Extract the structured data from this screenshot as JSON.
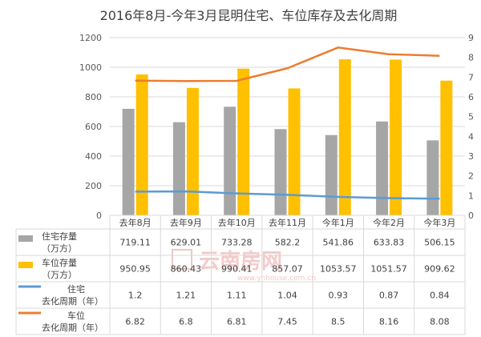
{
  "chart_data": {
    "type": "bar",
    "title": "2016年8月-今年3月昆明住宅、车位库存及去化周期",
    "categories": [
      "去年8月",
      "去年9月",
      "去年10月",
      "去年11月",
      "今年1月",
      "今年2月",
      "今年3月"
    ],
    "left_axis": {
      "min": 0,
      "max": 1200,
      "ticks": [
        "0",
        "200",
        "400",
        "600",
        "800",
        "1000",
        "1200"
      ]
    },
    "right_axis": {
      "min": 0,
      "max": 9,
      "ticks": [
        "0",
        "1",
        "2",
        "3",
        "4",
        "5",
        "6",
        "7",
        "8",
        "9"
      ]
    },
    "series": [
      {
        "name_lines": [
          "住宅存量",
          "（万方）"
        ],
        "type": "bar",
        "axis": "left",
        "color": "#a6a6a6",
        "values": [
          719.11,
          629.01,
          733.28,
          582.2,
          541.86,
          633.83,
          506.15
        ],
        "labels": [
          "719.11",
          "629.01",
          "733.28",
          "582.2",
          "541.86",
          "633.83",
          "506.15"
        ]
      },
      {
        "name_lines": [
          "车位存量",
          "（万方）"
        ],
        "type": "bar",
        "axis": "left",
        "color": "#ffc000",
        "values": [
          950.95,
          860.43,
          990.41,
          857.07,
          1053.57,
          1051.57,
          909.62
        ],
        "labels": [
          "950.95",
          "860.43",
          "990.41",
          "857.07",
          "1053.57",
          "1051.57",
          "909.62"
        ]
      },
      {
        "name_lines": [
          "住宅",
          "去化周期（年）"
        ],
        "type": "line",
        "axis": "right",
        "color": "#5b9bd5",
        "values": [
          1.2,
          1.21,
          1.11,
          1.04,
          0.93,
          0.87,
          0.84
        ],
        "labels": [
          "1.2",
          "1.21",
          "1.11",
          "1.04",
          "0.93",
          "0.87",
          "0.84"
        ]
      },
      {
        "name_lines": [
          "车位",
          "去化周期（年）"
        ],
        "type": "line",
        "axis": "right",
        "color": "#ed7d31",
        "values": [
          6.82,
          6.8,
          6.81,
          7.45,
          8.5,
          8.16,
          8.08
        ],
        "labels": [
          "6.82",
          "6.8",
          "6.81",
          "7.45",
          "8.5",
          "8.16",
          "8.08"
        ]
      }
    ],
    "watermark": {
      "brand": "云南房网",
      "url": "www.ynhouse.com.cn"
    }
  }
}
